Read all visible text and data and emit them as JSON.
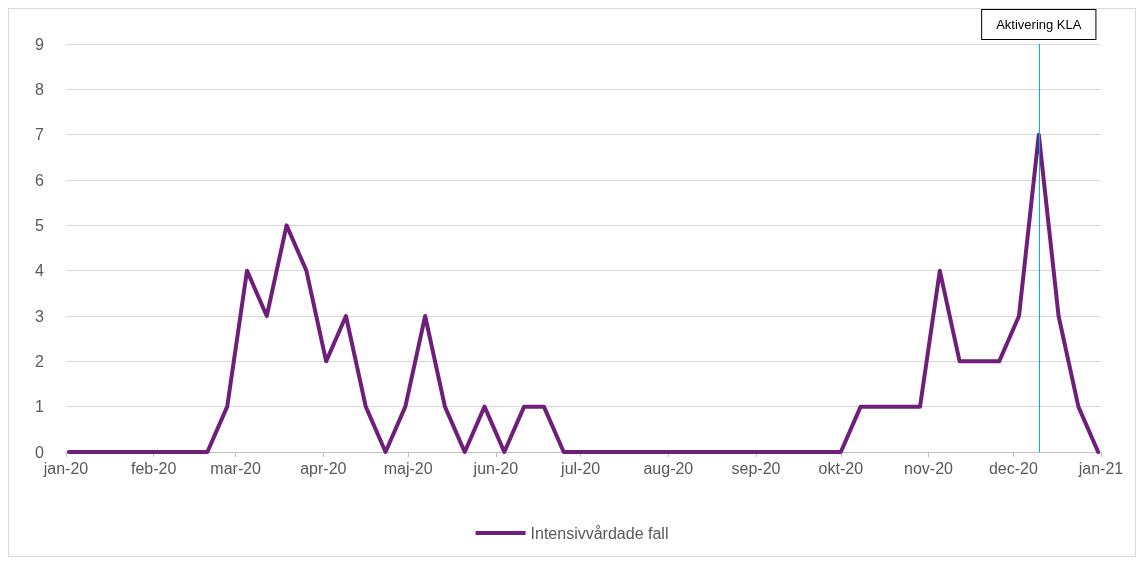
{
  "chart_data": {
    "type": "line",
    "x": [
      "2020-01-02",
      "2020-01-09",
      "2020-01-16",
      "2020-01-23",
      "2020-01-30",
      "2020-02-06",
      "2020-02-13",
      "2020-02-20",
      "2020-02-27",
      "2020-03-05",
      "2020-03-12",
      "2020-03-19",
      "2020-03-26",
      "2020-04-02",
      "2020-04-09",
      "2020-04-16",
      "2020-04-23",
      "2020-04-30",
      "2020-05-07",
      "2020-05-14",
      "2020-05-21",
      "2020-05-28",
      "2020-06-04",
      "2020-06-11",
      "2020-06-18",
      "2020-06-25",
      "2020-07-02",
      "2020-07-09",
      "2020-07-16",
      "2020-07-23",
      "2020-07-30",
      "2020-08-06",
      "2020-08-13",
      "2020-08-20",
      "2020-08-27",
      "2020-09-03",
      "2020-09-10",
      "2020-09-17",
      "2020-09-24",
      "2020-10-01",
      "2020-10-08",
      "2020-10-15",
      "2020-10-22",
      "2020-10-29",
      "2020-11-05",
      "2020-11-12",
      "2020-11-19",
      "2020-11-26",
      "2020-12-03",
      "2020-12-10",
      "2020-12-17",
      "2020-12-24",
      "2020-12-31"
    ],
    "series": [
      {
        "name": "Intensivvårdade fall",
        "color": "#6f1f7a",
        "values": [
          0,
          0,
          0,
          0,
          0,
          0,
          0,
          0,
          1,
          4,
          3,
          5,
          4,
          2,
          3,
          1,
          0,
          1,
          3,
          1,
          0,
          1,
          0,
          1,
          1,
          0,
          0,
          0,
          0,
          0,
          0,
          0,
          0,
          0,
          0,
          0,
          0,
          0,
          0,
          0,
          1,
          1,
          1,
          1,
          4,
          2,
          2,
          2,
          3,
          7,
          3,
          1,
          0
        ]
      }
    ],
    "xlim": [
      "2020-01-01",
      "2021-01-01"
    ],
    "xticks": [
      {
        "value": "2020-01-01",
        "label": "jan-20"
      },
      {
        "value": "2020-02-01",
        "label": "feb-20"
      },
      {
        "value": "2020-03-01",
        "label": "mar-20"
      },
      {
        "value": "2020-04-01",
        "label": "apr-20"
      },
      {
        "value": "2020-05-01",
        "label": "maj-20"
      },
      {
        "value": "2020-06-01",
        "label": "jun-20"
      },
      {
        "value": "2020-07-01",
        "label": "jul-20"
      },
      {
        "value": "2020-08-01",
        "label": "aug-20"
      },
      {
        "value": "2020-09-01",
        "label": "sep-20"
      },
      {
        "value": "2020-10-01",
        "label": "okt-20"
      },
      {
        "value": "2020-11-01",
        "label": "nov-20"
      },
      {
        "value": "2020-12-01",
        "label": "dec-20"
      },
      {
        "value": "2021-01-01",
        "label": "jan-21"
      }
    ],
    "ylim": [
      0,
      9
    ],
    "yticks": [
      0,
      1,
      2,
      3,
      4,
      5,
      6,
      7,
      8,
      9
    ],
    "grid": "y",
    "legend": "bottom",
    "marker": "none",
    "line_style": "solid",
    "ref_lines": [
      {
        "axis": "x",
        "value": "2020-12-10",
        "label": "Aktivering KLA",
        "color": "#00b0f0"
      }
    ]
  }
}
